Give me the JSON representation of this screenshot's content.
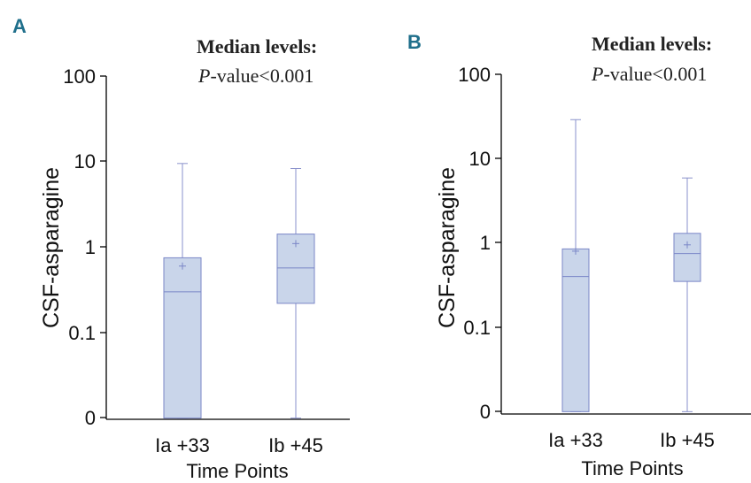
{
  "chart_data": [
    {
      "panel_label": "A",
      "type": "box",
      "annotation": {
        "line1": "Median levels:",
        "line2_italic": "P",
        "line2_rest": "-value<0.001"
      },
      "xlabel": "Time Points",
      "ylabel": "CSF-asparagine",
      "y_scale": "log",
      "y_ticks": [
        "100",
        "10",
        "1",
        "0.1",
        "0"
      ],
      "categories": [
        "Ia +33",
        "Ib +45"
      ],
      "boxes": [
        {
          "whisker_low": 0.01,
          "q1": 0.01,
          "median": 0.3,
          "q3": 0.75,
          "whisker_high": 9.5,
          "mean": 0.6
        },
        {
          "whisker_low": 0.01,
          "q1": 0.22,
          "median": 0.57,
          "q3": 1.42,
          "whisker_high": 8.3,
          "mean": 1.1
        }
      ]
    },
    {
      "panel_label": "B",
      "type": "box",
      "annotation": {
        "line1": "Median levels:",
        "line2_italic": "P",
        "line2_rest": "-value<0.001"
      },
      "xlabel": "Time Points",
      "ylabel": "CSF-asparagine",
      "y_scale": "log",
      "y_ticks": [
        "100",
        "10",
        "1",
        "0.1",
        "0"
      ],
      "categories": [
        "Ia +33",
        "Ib +45"
      ],
      "boxes": [
        {
          "whisker_low": 0.01,
          "q1": 0.01,
          "median": 0.4,
          "q3": 0.85,
          "whisker_high": 29,
          "mean": 0.8
        },
        {
          "whisker_low": 0.01,
          "q1": 0.35,
          "median": 0.75,
          "q3": 1.3,
          "whisker_high": 5.9,
          "mean": 0.95
        }
      ]
    }
  ]
}
